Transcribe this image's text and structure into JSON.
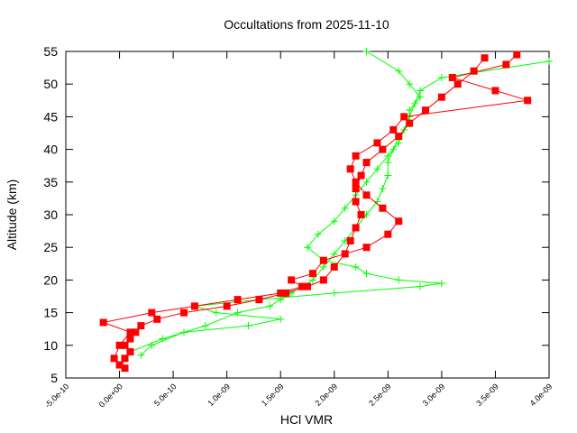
{
  "chart_data": {
    "type": "line",
    "title": "Occultations from 2025-11-10",
    "x_label": "HCl VMR",
    "y_label": "Altitude (km)",
    "xlim": [
      -5e-10,
      4e-09
    ],
    "ylim": [
      5,
      55
    ],
    "xticks": [
      {
        "value": -5e-10,
        "label": "-5.0e-10"
      },
      {
        "value": 0,
        "label": "0.0e+00"
      },
      {
        "value": 5e-10,
        "label": "5.0e-10"
      },
      {
        "value": 1e-09,
        "label": "1.0e-09"
      },
      {
        "value": 1.5e-09,
        "label": "1.5e-09"
      },
      {
        "value": 2e-09,
        "label": "2.0e-09"
      },
      {
        "value": 2.5e-09,
        "label": "2.5e-09"
      },
      {
        "value": 3e-09,
        "label": "3.0e-09"
      },
      {
        "value": 3.5e-09,
        "label": "3.5e-09"
      },
      {
        "value": 4e-09,
        "label": "4.0e-09"
      }
    ],
    "yticks": [
      5,
      10,
      15,
      20,
      25,
      30,
      35,
      40,
      45,
      50,
      55
    ],
    "series": [
      {
        "color": "#00ff00",
        "marker": "plus",
        "x": [
          2e-10,
          3e-10,
          6e-10,
          1.2e-09,
          1.5e-09,
          9e-10,
          7e-10,
          1.3e-09,
          2e-09,
          2.8e-09,
          3e-09,
          2.6e-09,
          2.3e-09,
          2.2e-09,
          1.9e-09,
          1.75e-09,
          1.85e-09,
          2e-09,
          2.1e-09,
          2.2e-09,
          2.3e-09,
          2.4e-09,
          2.5e-09,
          2.6e-09,
          2.65e-09,
          2.7e-09,
          2.75e-09,
          2.8e-09,
          3e-09,
          4e-09
        ],
        "y": [
          8.5,
          10,
          12,
          13,
          14,
          15,
          16,
          17,
          18,
          19,
          19.5,
          20,
          21,
          22,
          23,
          25,
          27,
          29,
          31,
          33,
          35,
          37,
          39,
          41,
          43,
          45,
          47,
          49,
          51,
          53.5
        ]
      },
      {
        "color": "#00ff00",
        "marker": "plus",
        "x": [
          1e-10,
          4e-10,
          8e-10,
          1.1e-09,
          1.4e-09,
          1.5e-09,
          1.6e-09,
          1.7e-09,
          1.8e-09,
          1.9e-09,
          2e-09,
          2.1e-09,
          2.2e-09,
          2.3e-09,
          2.4e-09,
          2.45e-09,
          2.5e-09,
          2.5e-09,
          2.55e-09,
          2.6e-09,
          2.7e-09,
          2.7e-09,
          2.8e-09,
          2.7e-09,
          2.6e-09,
          2.3e-09
        ],
        "y": [
          9,
          11,
          13,
          15,
          16,
          17,
          18,
          19,
          20,
          22,
          24,
          26,
          28,
          30,
          32,
          34,
          36,
          38,
          40,
          42,
          44,
          46,
          48,
          50,
          52,
          55
        ]
      },
      {
        "color": "#ff0000",
        "marker": "square",
        "x": [
          0,
          5e-11,
          1e-10,
          5e-11,
          1e-10,
          1.5e-10,
          2e-10,
          3.5e-10,
          6e-10,
          1e-09,
          1.3e-09,
          1.55e-09,
          1.75e-09,
          1.9e-09,
          2e-09,
          2.1e-09,
          2.15e-09,
          2.2e-09,
          2.25e-09,
          2.2e-09,
          2.2e-09,
          2.25e-09,
          2.3e-09,
          2.45e-09,
          2.6e-09,
          2.7e-09,
          2.85e-09,
          3e-09,
          3.15e-09,
          3.3e-09,
          3.4e-09
        ],
        "y": [
          7,
          8,
          9,
          10,
          11,
          12,
          13,
          14,
          15,
          16,
          17,
          18,
          19,
          20,
          22,
          24,
          26,
          28,
          30,
          32,
          34,
          36,
          38,
          40,
          42,
          44,
          46,
          48,
          50,
          52,
          54
        ]
      },
      {
        "color": "#ff0000",
        "marker": "square",
        "x": [
          5e-11,
          -5e-11,
          0,
          1e-10,
          -1.5e-10,
          3e-10,
          7e-10,
          1.1e-09,
          1.5e-09,
          1.7e-09,
          1.6e-09,
          1.8e-09,
          1.9e-09,
          2.3e-09,
          2.5e-09,
          2.6e-09,
          2.45e-09,
          2.3e-09,
          2.2e-09,
          2.15e-09,
          2.2e-09,
          2.4e-09,
          2.55e-09,
          2.65e-09,
          3.8e-09,
          3.5e-09,
          3.1e-09,
          3.6e-09,
          3.7e-09
        ],
        "y": [
          6.5,
          8,
          10,
          12,
          13.5,
          15,
          16,
          17,
          18,
          19,
          20,
          21,
          23,
          25,
          27,
          29,
          31,
          33,
          35,
          37,
          39,
          41,
          43,
          45,
          47.5,
          49,
          51,
          53,
          54.5
        ]
      }
    ]
  }
}
